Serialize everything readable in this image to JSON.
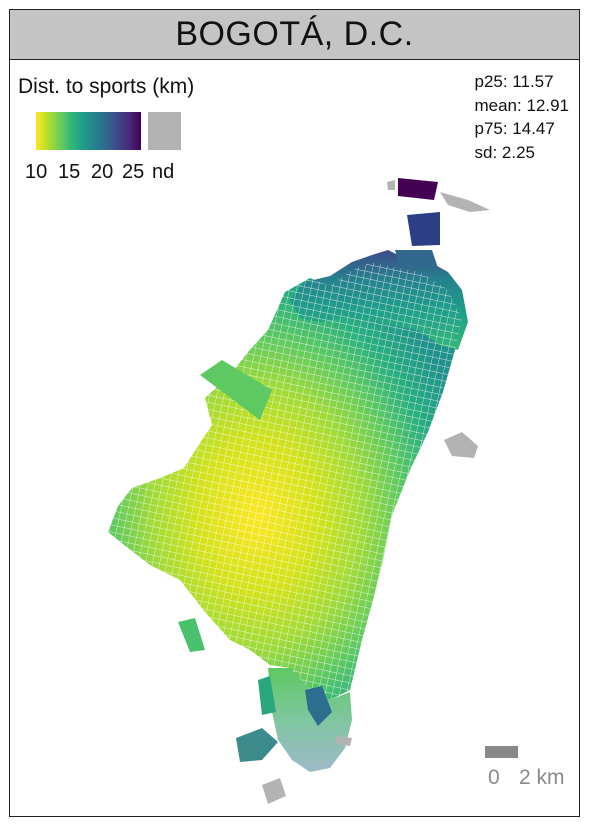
{
  "title": "BOGOTÁ, D.C.",
  "legend": {
    "title": "Dist. to sports (km)",
    "ticks": [
      "10",
      "15",
      "20",
      "25",
      "nd"
    ],
    "gradient_colors": [
      "#fde725",
      "#b5de2b",
      "#6ece58",
      "#35b779",
      "#1f9e89",
      "#26828e",
      "#31688e",
      "#3e4989",
      "#482878",
      "#440154"
    ],
    "nd_color": "#b3b3b3"
  },
  "stats": {
    "p25": "p25: 11.57",
    "mean": "mean: 12.91",
    "p75": "p75: 14.47",
    "sd": "sd: 2.25"
  },
  "scale": {
    "zero": "0",
    "distance": "2 km"
  }
}
